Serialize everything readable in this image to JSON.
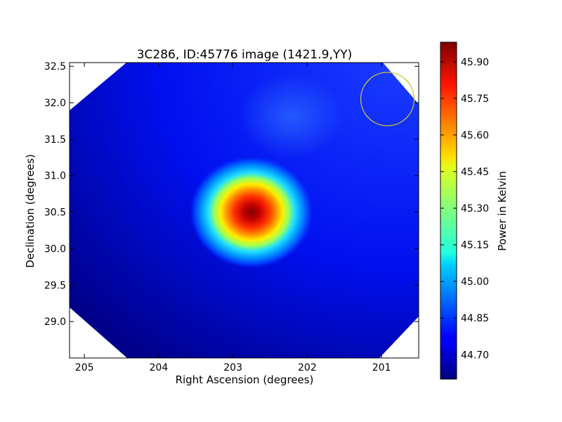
{
  "chart_data": {
    "type": "heatmap",
    "title": "3C286, ID:45776 image (1421.9,YY)",
    "xlabel": "Right Ascension (degrees)",
    "ylabel": "Declination (degrees)",
    "xlim": [
      205.2,
      200.5
    ],
    "ylim": [
      28.5,
      32.55
    ],
    "x_ticks": [
      205,
      204,
      203,
      202,
      201
    ],
    "x_tick_labels": [
      "205",
      "204",
      "203",
      "202",
      "201"
    ],
    "y_ticks": [
      29.0,
      29.5,
      30.0,
      30.5,
      31.0,
      31.5,
      32.0,
      32.5
    ],
    "y_tick_labels": [
      "29.0",
      "29.5",
      "30.0",
      "30.5",
      "31.0",
      "31.5",
      "32.0",
      "32.5"
    ],
    "colorbar": {
      "label": "Power in Kelvin",
      "range": [
        44.6,
        45.98
      ],
      "ticks": [
        44.7,
        44.85,
        45.0,
        45.15,
        45.3,
        45.45,
        45.6,
        45.75,
        45.9
      ],
      "tick_labels": [
        "44.70",
        "44.85",
        "45.00",
        "45.15",
        "45.30",
        "45.45",
        "45.60",
        "45.75",
        "45.90"
      ],
      "colormap": "jet"
    },
    "source_peak": {
      "ra": 202.75,
      "dec": 30.5,
      "value": 45.97
    },
    "background_level": 44.75,
    "beam_marker": {
      "ra": 200.92,
      "dec": 32.05,
      "color": "#c8c832"
    }
  }
}
